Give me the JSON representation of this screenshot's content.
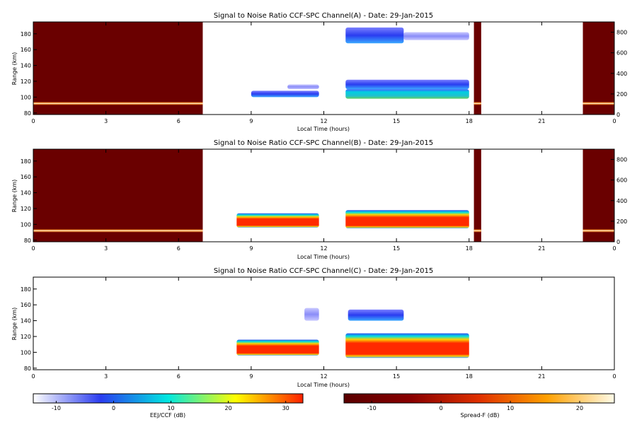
{
  "chart_data": [
    {
      "type": "heatmap",
      "title": "Signal to Noise Ratio CCF-SPC Channel(A) - Date: 29-Jan-2015",
      "xlabel": "Local Time (hours)",
      "ylabel": "Range (km)",
      "xlim": [
        0,
        24
      ],
      "ylim": [
        78,
        195
      ],
      "xticks": [
        "0",
        "3",
        "6",
        "9",
        "12",
        "15",
        "18",
        "21",
        "0"
      ],
      "yticks": [
        "80",
        "100",
        "120",
        "140",
        "160",
        "180"
      ],
      "right_axis_ticks": [
        "0",
        "200",
        "400",
        "600",
        "800"
      ],
      "right_axis_range": [
        0,
        900
      ],
      "spreadf_blocks": [
        [
          0,
          7.0
        ],
        [
          18.2,
          18.5
        ],
        [
          22.7,
          24
        ]
      ],
      "spreadf_trace_range_km": 92,
      "eej_blocks": [
        {
          "x": [
            9,
            11.8
          ],
          "y": [
            100,
            108
          ],
          "level": "low"
        },
        {
          "x": [
            10.5,
            11.8
          ],
          "y": [
            110,
            116
          ],
          "level": "faint"
        },
        {
          "x": [
            12.9,
            18.0
          ],
          "y": [
            98,
            110
          ],
          "level": "mid"
        },
        {
          "x": [
            12.9,
            18.0
          ],
          "y": [
            110,
            122
          ],
          "level": "low"
        },
        {
          "x": [
            12.9,
            15.3
          ],
          "y": [
            168,
            188
          ],
          "level": "low"
        },
        {
          "x": [
            15.3,
            18.0
          ],
          "y": [
            172,
            182
          ],
          "level": "faint"
        }
      ]
    },
    {
      "type": "heatmap",
      "title": "Signal to Noise Ratio CCF-SPC Channel(B) - Date: 29-Jan-2015",
      "xlabel": "Local Time (hours)",
      "ylabel": "Range (km)",
      "xlim": [
        0,
        24
      ],
      "ylim": [
        78,
        195
      ],
      "xticks": [
        "0",
        "3",
        "6",
        "9",
        "12",
        "15",
        "18",
        "21",
        "0"
      ],
      "yticks": [
        "80",
        "100",
        "120",
        "140",
        "160",
        "180"
      ],
      "right_axis_ticks": [
        "0",
        "200",
        "400",
        "600",
        "800"
      ],
      "right_axis_range": [
        0,
        900
      ],
      "spreadf_blocks": [
        [
          0,
          7.0
        ],
        [
          18.2,
          18.5
        ],
        [
          22.7,
          24
        ]
      ],
      "spreadf_trace_range_km": 92,
      "eej_blocks": [
        {
          "x": [
            8.4,
            11.8
          ],
          "y": [
            96,
            114
          ],
          "level": "high"
        },
        {
          "x": [
            12.9,
            18.0
          ],
          "y": [
            95,
            118
          ],
          "level": "high"
        }
      ]
    },
    {
      "type": "heatmap",
      "title": "Signal to Noise Ratio CCF-SPC Channel(C) - Date: 29-Jan-2015",
      "xlabel": "Local Time (hours)",
      "ylabel": "Range (km)",
      "xlim": [
        0,
        24
      ],
      "ylim": [
        78,
        195
      ],
      "xticks": [
        "0",
        "3",
        "6",
        "9",
        "12",
        "15",
        "18",
        "21",
        "0"
      ],
      "yticks": [
        "80",
        "100",
        "120",
        "140",
        "160",
        "180"
      ],
      "spreadf_blocks": [],
      "eej_blocks": [
        {
          "x": [
            8.4,
            11.8
          ],
          "y": [
            96,
            116
          ],
          "level": "high"
        },
        {
          "x": [
            12.9,
            18.0
          ],
          "y": [
            93,
            124
          ],
          "level": "high"
        },
        {
          "x": [
            13.0,
            15.3
          ],
          "y": [
            140,
            154
          ],
          "level": "low"
        },
        {
          "x": [
            11.2,
            11.8
          ],
          "y": [
            140,
            156
          ],
          "level": "faint"
        }
      ]
    }
  ],
  "colorbars": [
    {
      "label": "EEJ/CCF (dB)",
      "range": [
        -14,
        33
      ],
      "ticks": [
        -10,
        0,
        10,
        20,
        30
      ],
      "tick_labels": [
        "-10",
        "0",
        "10",
        "20",
        "30"
      ],
      "colors": [
        "#ffffff",
        "#2a3cf0",
        "#00e8e0",
        "#ffff00",
        "#ff2000"
      ]
    },
    {
      "label": "Spread-F (dB)",
      "range": [
        -14,
        25
      ],
      "ticks": [
        -10,
        0,
        10,
        20
      ],
      "tick_labels": [
        "-10",
        "0",
        "10",
        "20"
      ],
      "colors": [
        "#5a0000",
        "#8a0000",
        "#e03000",
        "#ffa000",
        "#fffbe8"
      ]
    }
  ]
}
